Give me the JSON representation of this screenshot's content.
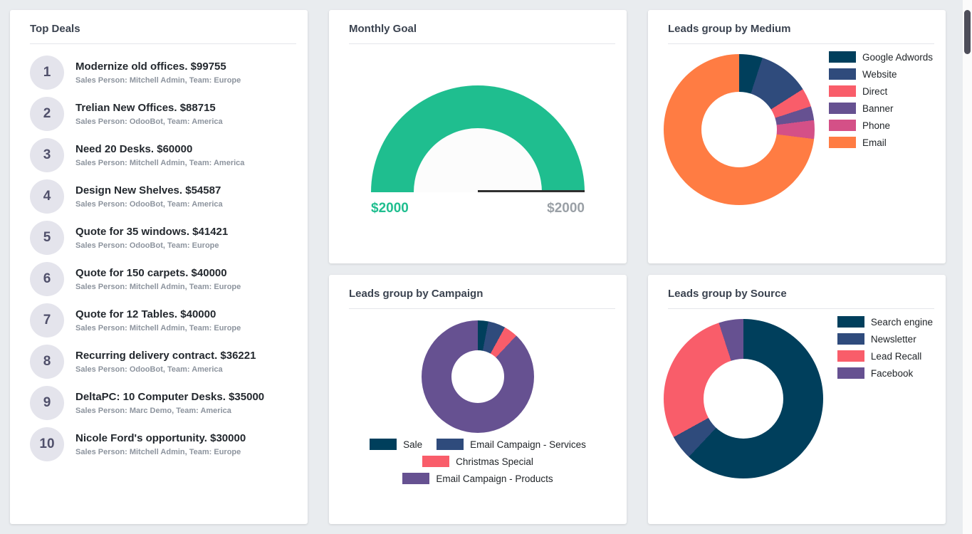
{
  "page": {
    "background": "#e9ecef"
  },
  "top_deals": {
    "title": "Top Deals",
    "deals": [
      {
        "rank": "1",
        "title": "Modernize old offices. $99755",
        "meta": "Sales Person: Mitchell Admin,  Team: Europe"
      },
      {
        "rank": "2",
        "title": "Trelian New Offices. $88715",
        "meta": "Sales Person: OdooBot,  Team: America"
      },
      {
        "rank": "3",
        "title": "Need 20 Desks. $60000",
        "meta": "Sales Person: Mitchell Admin,  Team: America"
      },
      {
        "rank": "4",
        "title": "Design New Shelves. $54587",
        "meta": "Sales Person: OdooBot,  Team: America"
      },
      {
        "rank": "5",
        "title": "Quote for 35 windows. $41421",
        "meta": "Sales Person: OdooBot,  Team: Europe"
      },
      {
        "rank": "6",
        "title": "Quote for 150 carpets. $40000",
        "meta": "Sales Person: Mitchell Admin,  Team: Europe"
      },
      {
        "rank": "7",
        "title": "Quote for 12 Tables. $40000",
        "meta": "Sales Person: Mitchell Admin,  Team: Europe"
      },
      {
        "rank": "8",
        "title": "Recurring delivery contract. $36221",
        "meta": "Sales Person: OdooBot,  Team: America"
      },
      {
        "rank": "9",
        "title": "DeltaPC: 10 Computer Desks. $35000",
        "meta": "Sales Person: Marc Demo,  Team: America"
      },
      {
        "rank": "10",
        "title": "Nicole Ford's opportunity. $30000",
        "meta": "Sales Person: Mitchell Admin,  Team: Europe"
      }
    ]
  },
  "chart_data": [
    {
      "id": "monthly_goal",
      "type": "gauge",
      "title": "Monthly Goal",
      "value": 2000,
      "max": 2000,
      "value_label": "$2000",
      "max_label": "$2000",
      "color": "#1fbe8f",
      "track_color": "#f1f3f3"
    },
    {
      "id": "medium",
      "type": "pie",
      "title": "Leads group by Medium",
      "labels": [
        "Google Adwords",
        "Website",
        "Direct",
        "Banner",
        "Phone",
        "Email"
      ],
      "values": [
        5,
        11,
        4,
        3,
        4,
        73
      ],
      "colors": [
        "#003f5c",
        "#2f4b7c",
        "#f95d6a",
        "#665191",
        "#d45087",
        "#ff7c43"
      ],
      "legend_position": "right"
    },
    {
      "id": "campaign",
      "type": "pie",
      "title": "Leads group by Campaign",
      "labels": [
        "Sale",
        "Email Campaign - Services",
        "Christmas Special",
        "Email Campaign - Products"
      ],
      "values": [
        3,
        5,
        4,
        88
      ],
      "colors": [
        "#003f5c",
        "#2f4b7c",
        "#f95d6a",
        "#665191"
      ],
      "legend_position": "bottom"
    },
    {
      "id": "source",
      "type": "pie",
      "title": "Leads group by Source",
      "labels": [
        "Search engine",
        "Newsletter",
        "Lead Recall",
        "Facebook"
      ],
      "values": [
        62,
        5,
        28,
        5
      ],
      "colors": [
        "#003f5c",
        "#2f4b7c",
        "#f95d6a",
        "#665191"
      ],
      "legend_position": "right"
    }
  ]
}
